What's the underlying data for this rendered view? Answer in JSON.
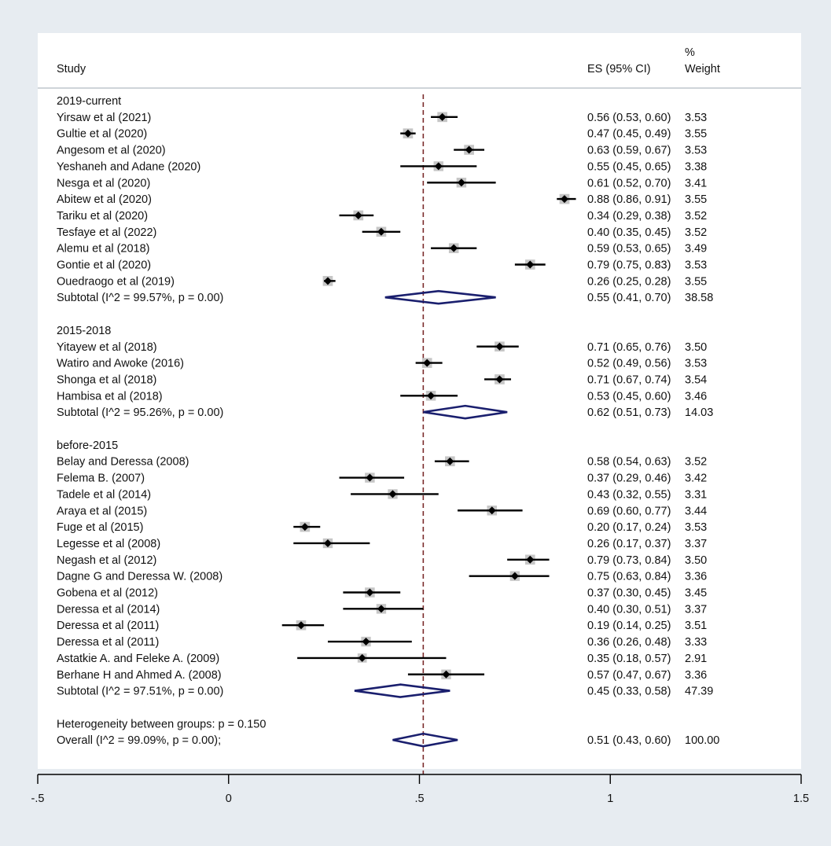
{
  "chart_data": {
    "type": "forest",
    "headers": {
      "study": "Study",
      "es": "ES (95% CI)",
      "weight_top": "%",
      "weight_bottom": "Weight"
    },
    "null_line": 0.51,
    "x_axis": {
      "range": [
        -0.5,
        1.5
      ],
      "ticks": [
        {
          "value": -0.5,
          "label": "-.5"
        },
        {
          "value": 0,
          "label": "0"
        },
        {
          "value": 0.5,
          "label": ".5"
        },
        {
          "value": 1,
          "label": "1"
        },
        {
          "value": 1.5,
          "label": "1.5"
        }
      ]
    },
    "groups": [
      {
        "name": "2019-current",
        "studies": [
          {
            "label": "Yirsaw et al (2021)",
            "es": 0.56,
            "lo": 0.53,
            "hi": 0.6,
            "es_text": "0.56 (0.53, 0.60)",
            "weight": "3.53"
          },
          {
            "label": "Gultie et al (2020)",
            "es": 0.47,
            "lo": 0.45,
            "hi": 0.49,
            "es_text": "0.47 (0.45, 0.49)",
            "weight": "3.55"
          },
          {
            "label": "Angesom et al (2020)",
            "es": 0.63,
            "lo": 0.59,
            "hi": 0.67,
            "es_text": "0.63 (0.59, 0.67)",
            "weight": "3.53"
          },
          {
            "label": "Yeshaneh and Adane (2020)",
            "es": 0.55,
            "lo": 0.45,
            "hi": 0.65,
            "es_text": "0.55 (0.45, 0.65)",
            "weight": "3.38"
          },
          {
            "label": "Nesga et al (2020)",
            "es": 0.61,
            "lo": 0.52,
            "hi": 0.7,
            "es_text": "0.61 (0.52, 0.70)",
            "weight": "3.41"
          },
          {
            "label": "Abitew et al (2020)",
            "es": 0.88,
            "lo": 0.86,
            "hi": 0.91,
            "es_text": "0.88 (0.86, 0.91)",
            "weight": "3.55"
          },
          {
            "label": "Tariku et al (2020)",
            "es": 0.34,
            "lo": 0.29,
            "hi": 0.38,
            "es_text": "0.34 (0.29, 0.38)",
            "weight": "3.52"
          },
          {
            "label": "Tesfaye et al (2022)",
            "es": 0.4,
            "lo": 0.35,
            "hi": 0.45,
            "es_text": "0.40 (0.35, 0.45)",
            "weight": "3.52"
          },
          {
            "label": "Alemu et al (2018)",
            "es": 0.59,
            "lo": 0.53,
            "hi": 0.65,
            "es_text": "0.59 (0.53, 0.65)",
            "weight": "3.49"
          },
          {
            "label": "Gontie et al (2020)",
            "es": 0.79,
            "lo": 0.75,
            "hi": 0.83,
            "es_text": "0.79 (0.75, 0.83)",
            "weight": "3.53"
          },
          {
            "label": "Ouedraogo et al (2019)",
            "es": 0.26,
            "lo": 0.25,
            "hi": 0.28,
            "es_text": "0.26 (0.25, 0.28)",
            "weight": "3.55"
          }
        ],
        "subtotal": {
          "label": "Subtotal  (I^2 = 99.57%, p = 0.00)",
          "es": 0.55,
          "lo": 0.41,
          "hi": 0.7,
          "es_text": "0.55 (0.41, 0.70)",
          "weight": "38.58"
        }
      },
      {
        "name": "2015-2018",
        "studies": [
          {
            "label": "Yitayew et al (2018)",
            "es": 0.71,
            "lo": 0.65,
            "hi": 0.76,
            "es_text": "0.71 (0.65, 0.76)",
            "weight": "3.50"
          },
          {
            "label": "Watiro and Awoke (2016)",
            "es": 0.52,
            "lo": 0.49,
            "hi": 0.56,
            "es_text": "0.52 (0.49, 0.56)",
            "weight": "3.53"
          },
          {
            "label": "Shonga et al (2018)",
            "es": 0.71,
            "lo": 0.67,
            "hi": 0.74,
            "es_text": "0.71 (0.67, 0.74)",
            "weight": "3.54"
          },
          {
            "label": "Hambisa et al (2018)",
            "es": 0.53,
            "lo": 0.45,
            "hi": 0.6,
            "es_text": "0.53 (0.45, 0.60)",
            "weight": "3.46"
          }
        ],
        "subtotal": {
          "label": "Subtotal  (I^2 = 95.26%, p = 0.00)",
          "es": 0.62,
          "lo": 0.51,
          "hi": 0.73,
          "es_text": "0.62 (0.51, 0.73)",
          "weight": "14.03"
        }
      },
      {
        "name": "before-2015",
        "studies": [
          {
            "label": "Belay and Deressa (2008)",
            "es": 0.58,
            "lo": 0.54,
            "hi": 0.63,
            "es_text": "0.58 (0.54, 0.63)",
            "weight": "3.52"
          },
          {
            "label": "Felema B. (2007)",
            "es": 0.37,
            "lo": 0.29,
            "hi": 0.46,
            "es_text": "0.37 (0.29, 0.46)",
            "weight": "3.42"
          },
          {
            "label": "Tadele et al (2014)",
            "es": 0.43,
            "lo": 0.32,
            "hi": 0.55,
            "es_text": "0.43 (0.32, 0.55)",
            "weight": "3.31"
          },
          {
            "label": "Araya et al (2015)",
            "es": 0.69,
            "lo": 0.6,
            "hi": 0.77,
            "es_text": "0.69 (0.60, 0.77)",
            "weight": "3.44"
          },
          {
            "label": "Fuge et al (2015)",
            "es": 0.2,
            "lo": 0.17,
            "hi": 0.24,
            "es_text": "0.20 (0.17, 0.24)",
            "weight": "3.53"
          },
          {
            "label": "Legesse et al (2008)",
            "es": 0.26,
            "lo": 0.17,
            "hi": 0.37,
            "es_text": "0.26 (0.17, 0.37)",
            "weight": "3.37"
          },
          {
            "label": "Negash et al (2012)",
            "es": 0.79,
            "lo": 0.73,
            "hi": 0.84,
            "es_text": "0.79 (0.73, 0.84)",
            "weight": "3.50"
          },
          {
            "label": "Dagne G and Deressa W. (2008)",
            "es": 0.75,
            "lo": 0.63,
            "hi": 0.84,
            "es_text": "0.75 (0.63, 0.84)",
            "weight": "3.36"
          },
          {
            "label": "Gobena et al (2012)",
            "es": 0.37,
            "lo": 0.3,
            "hi": 0.45,
            "es_text": "0.37 (0.30, 0.45)",
            "weight": "3.45"
          },
          {
            "label": "Deressa et al (2014)",
            "es": 0.4,
            "lo": 0.3,
            "hi": 0.51,
            "es_text": "0.40 (0.30, 0.51)",
            "weight": "3.37"
          },
          {
            "label": "Deressa et al (2011)",
            "es": 0.19,
            "lo": 0.14,
            "hi": 0.25,
            "es_text": "0.19 (0.14, 0.25)",
            "weight": "3.51"
          },
          {
            "label": "Deressa et al (2011)",
            "es": 0.36,
            "lo": 0.26,
            "hi": 0.48,
            "es_text": "0.36 (0.26, 0.48)",
            "weight": "3.33"
          },
          {
            "label": "Astatkie A. and Feleke A. (2009)",
            "es": 0.35,
            "lo": 0.18,
            "hi": 0.57,
            "es_text": "0.35 (0.18, 0.57)",
            "weight": "2.91"
          },
          {
            "label": "Berhane H and Ahmed A. (2008)",
            "es": 0.57,
            "lo": 0.47,
            "hi": 0.67,
            "es_text": "0.57 (0.47, 0.67)",
            "weight": "3.36"
          }
        ],
        "subtotal": {
          "label": "Subtotal  (I^2 = 97.51%, p = 0.00)",
          "es": 0.45,
          "lo": 0.33,
          "hi": 0.58,
          "es_text": "0.45 (0.33, 0.58)",
          "weight": "47.39"
        }
      }
    ],
    "heterogeneity": "Heterogeneity between groups: p = 0.150",
    "overall": {
      "label": "Overall  (I^2 = 99.09%, p = 0.00);",
      "es": 0.51,
      "lo": 0.43,
      "hi": 0.6,
      "es_text": "0.51 (0.43, 0.60)",
      "weight": "100.00"
    },
    "colors": {
      "diamond": "#1a1f6e",
      "null_line": "#7a2a2a",
      "weight_box": "#c6c6c6",
      "point": "#000000"
    }
  }
}
